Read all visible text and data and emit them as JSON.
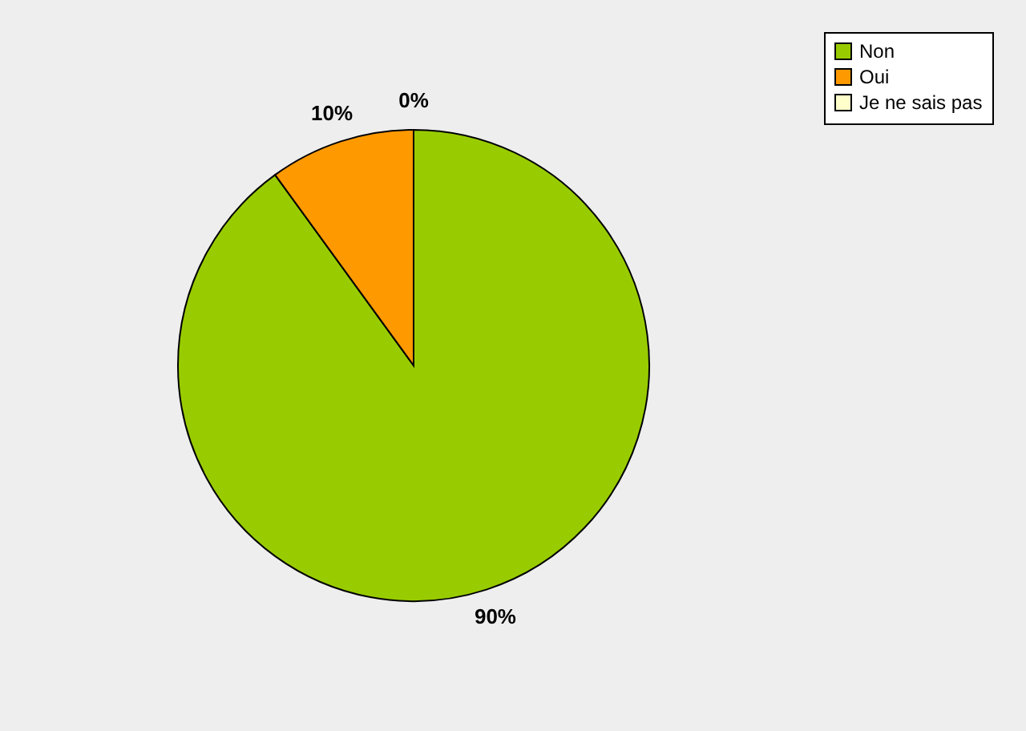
{
  "chart_data": {
    "type": "pie",
    "categories": [
      "Non",
      "Oui",
      "Je ne sais pas"
    ],
    "values": [
      90,
      10,
      0
    ],
    "colors": [
      "#99cc00",
      "#ff9900",
      "#ffffcc"
    ],
    "value_labels": [
      "90%",
      "10%",
      "0%"
    ],
    "legend": "right"
  }
}
